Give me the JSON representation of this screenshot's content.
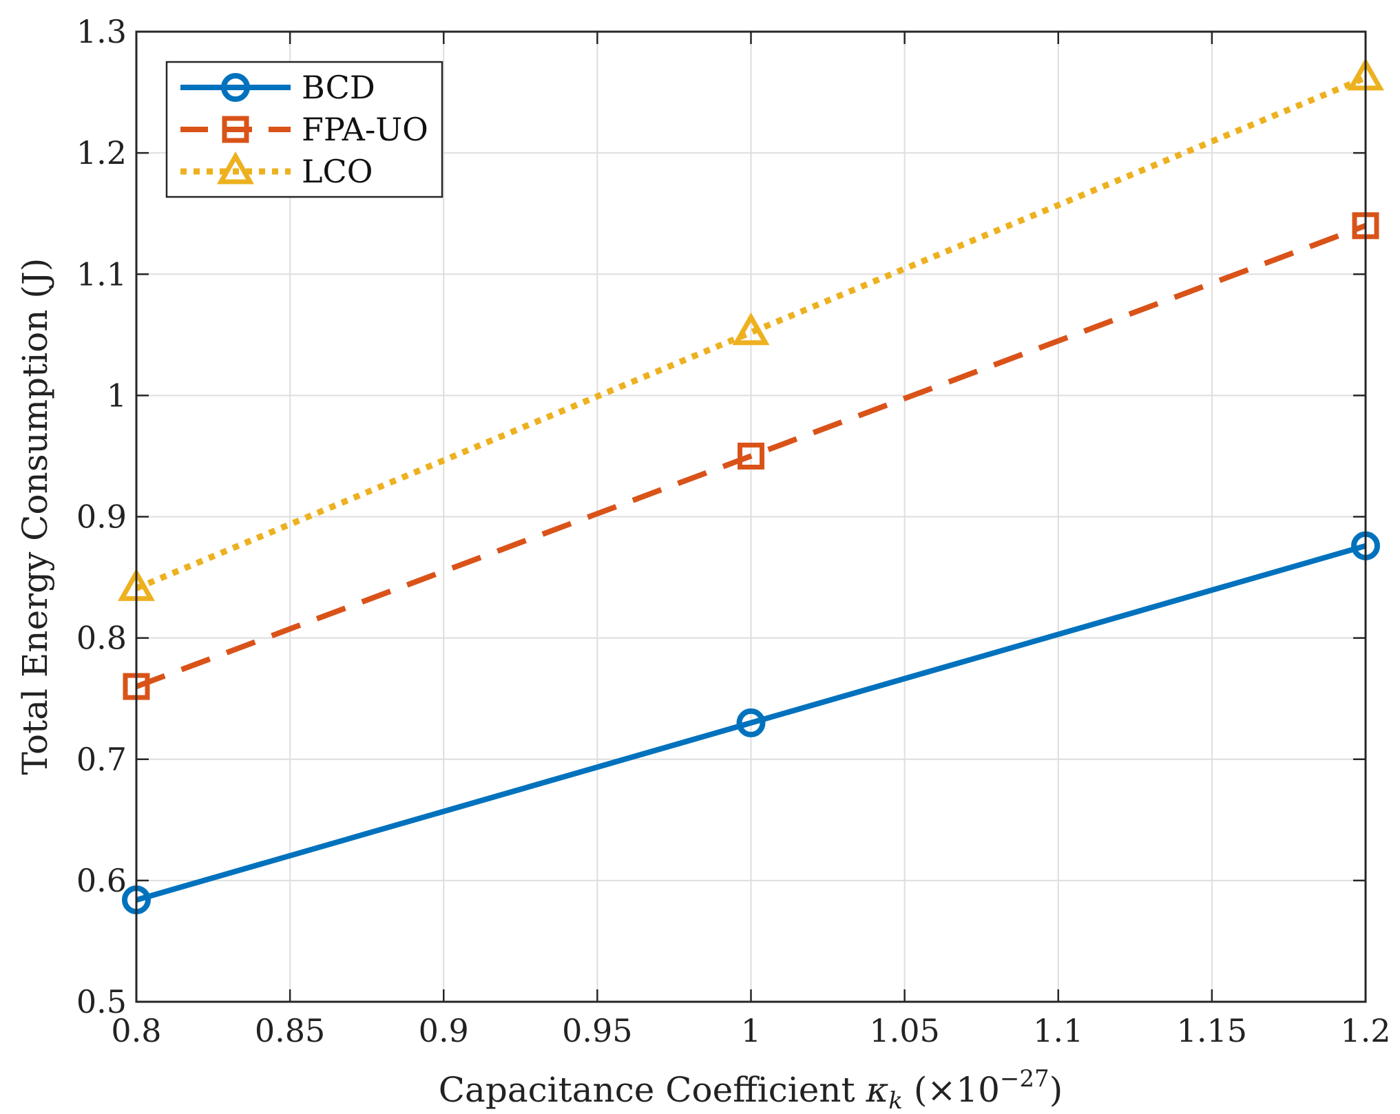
{
  "chart_data": {
    "type": "line",
    "title": "",
    "xlabel": {
      "main": "Capacitance Coefficient ",
      "symbol": "κ",
      "symbol_sub": "k",
      "unit_open": "(×10",
      "unit_exp": "−27",
      "unit_close": ")"
    },
    "ylabel": "Total Energy Consumption (J)",
    "xlim": [
      0.8,
      1.2
    ],
    "ylim": [
      0.5,
      1.3
    ],
    "xticks": [
      0.8,
      0.85,
      0.9,
      0.95,
      1,
      1.05,
      1.1,
      1.15,
      1.2
    ],
    "xtick_labels": [
      "0.8",
      "0.85",
      "0.9",
      "0.95",
      "1",
      "1.05",
      "1.1",
      "1.15",
      "1.2"
    ],
    "yticks": [
      0.5,
      0.6,
      0.7,
      0.8,
      0.9,
      1,
      1.1,
      1.2,
      1.3
    ],
    "ytick_labels": [
      "0.5",
      "0.6",
      "0.7",
      "0.8",
      "0.9",
      "1",
      "1.1",
      "1.2",
      "1.3"
    ],
    "grid": true,
    "legend_position": "top-left",
    "x": [
      0.8,
      1.0,
      1.2
    ],
    "series": [
      {
        "name": "BCD",
        "values": [
          0.584,
          0.73,
          0.876
        ],
        "color": "#0072BD",
        "line_style": "solid",
        "marker": "circle"
      },
      {
        "name": "FPA-UO",
        "values": [
          0.76,
          0.95,
          1.14
        ],
        "color": "#D95319",
        "line_style": "dashed",
        "marker": "square"
      },
      {
        "name": "LCO",
        "values": [
          0.841,
          1.052,
          1.262
        ],
        "color": "#EDB120",
        "line_style": "dotted",
        "marker": "triangle"
      }
    ]
  }
}
